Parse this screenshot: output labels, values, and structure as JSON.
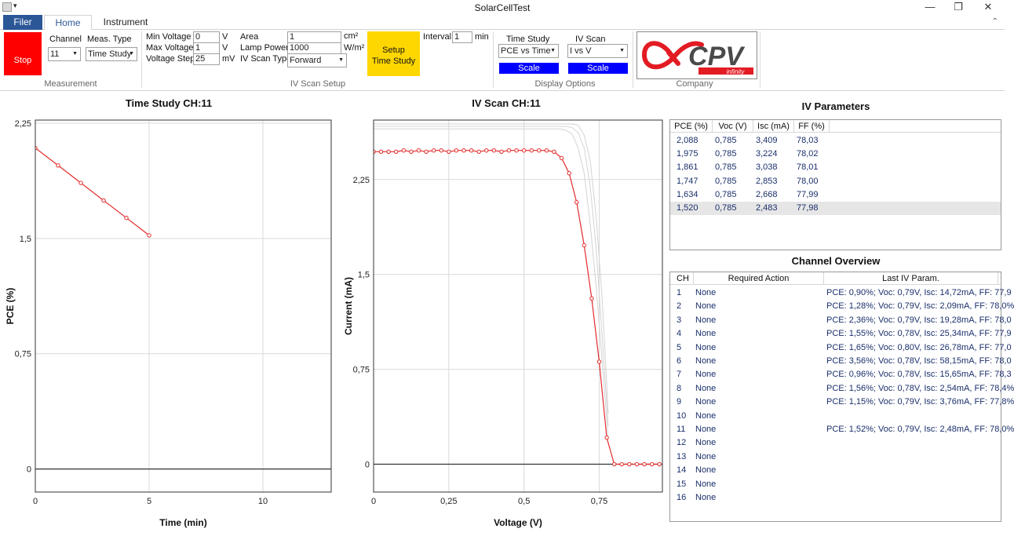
{
  "window": {
    "title": "SolarCellTest",
    "controls": [
      "minimize",
      "maximize",
      "close"
    ]
  },
  "ribbon_tabs": {
    "file": "Filer",
    "home": "Home",
    "instrument": "Instrument"
  },
  "measurement": {
    "stop_label": "Stop",
    "channel_label": "Channel",
    "channel_value": "11",
    "meas_type_label": "Meas. Type",
    "meas_type_value": "Time Study",
    "group_label": "Measurement"
  },
  "iv_setup": {
    "min_voltage_label": "Min Voltage",
    "min_voltage_value": "0",
    "min_voltage_unit": "V",
    "max_voltage_label": "Max Voltage",
    "max_voltage_value": "1",
    "max_voltage_unit": "V",
    "voltage_step_label": "Voltage Step",
    "voltage_step_value": "25",
    "voltage_step_unit": "mV",
    "area_label": "Area",
    "area_value": "1",
    "area_unit": "cm²",
    "lamp_power_label": "Lamp Power",
    "lamp_power_value": "1000",
    "lamp_power_unit": "W/m²",
    "scan_type_label": "IV Scan Type",
    "scan_type_value": "Forward",
    "setup_label_1": "Setup",
    "setup_label_2": "Time Study",
    "interval_label": "Interval",
    "interval_value": "1",
    "interval_unit": "min",
    "group_label": "IV Scan Setup",
    "setup_color": "#ffd700"
  },
  "display_options": {
    "time_study_label": "Time Study",
    "time_study_value": "PCE vs Time",
    "iv_scan_label": "IV Scan",
    "iv_scan_value": "I vs V",
    "scale_label": "Scale",
    "group_label": "Display Options"
  },
  "company": {
    "logo_text": "CPV",
    "logo_sub": "infinity",
    "group_label": "Company"
  },
  "time_chart_title": "Time Study CH:11",
  "iv_chart_title": "IV Scan CH:11",
  "chart_data": [
    {
      "type": "line",
      "title": "Time Study CH:11",
      "xlabel": "Time (min)",
      "ylabel": "PCE (%)",
      "xlim": [
        0,
        13
      ],
      "ylim": [
        -0.15,
        2.27
      ],
      "x_ticks": [
        0,
        5,
        10
      ],
      "x_tick_labels": [
        "0",
        "5",
        "10"
      ],
      "y_ticks": [
        0,
        0.75,
        1.5,
        2.25
      ],
      "y_tick_labels": [
        "0",
        "0,75",
        "1,5",
        "2,25"
      ],
      "grid": true,
      "series": [
        {
          "x": [
            0,
            1,
            2,
            3,
            4,
            5
          ],
          "y": [
            2.088,
            1.975,
            1.861,
            1.747,
            1.634,
            1.52
          ],
          "color": "#e32b2b"
        }
      ]
    },
    {
      "type": "line",
      "title": "IV Scan CH:11",
      "xlabel": "Voltage (V)",
      "ylabel": "Current (mA)",
      "xlim": [
        0,
        0.96
      ],
      "ylim": [
        -0.22,
        2.72
      ],
      "x_ticks": [
        0,
        0.25,
        0.5,
        0.75
      ],
      "x_tick_labels": [
        "0",
        "0,25",
        "0,5",
        "0,75"
      ],
      "y_ticks": [
        0,
        0.75,
        1.5,
        2.25
      ],
      "y_tick_labels": [
        "0",
        "0,75",
        "1,5",
        "2,25"
      ],
      "grid": true,
      "series": [
        {
          "color": "#e32b2b",
          "x": [
            0,
            0.025,
            0.05,
            0.075,
            0.1,
            0.125,
            0.15,
            0.175,
            0.2,
            0.225,
            0.25,
            0.275,
            0.3,
            0.325,
            0.35,
            0.375,
            0.4,
            0.425,
            0.45,
            0.475,
            0.5,
            0.525,
            0.55,
            0.575,
            0.6,
            0.625,
            0.65,
            0.675,
            0.7,
            0.725,
            0.75,
            0.775,
            0.8,
            0.825,
            0.85,
            0.875,
            0.9,
            0.925,
            0.95
          ],
          "y": [
            2.47,
            2.47,
            2.47,
            2.47,
            2.48,
            2.47,
            2.48,
            2.47,
            2.48,
            2.48,
            2.47,
            2.48,
            2.48,
            2.48,
            2.47,
            2.48,
            2.48,
            2.47,
            2.48,
            2.48,
            2.48,
            2.48,
            2.48,
            2.48,
            2.47,
            2.42,
            2.3,
            2.07,
            1.73,
            1.31,
            0.81,
            0.21,
            0,
            0,
            0,
            0,
            0,
            0,
            0
          ]
        },
        {
          "color": "#d3d3d3",
          "x": [
            0,
            0.6,
            0.62,
            0.64,
            0.66,
            0.68,
            0.7,
            0.72,
            0.74,
            0.76,
            0.78
          ],
          "y": [
            2.65,
            2.65,
            2.65,
            2.64,
            2.61,
            2.5,
            2.3,
            1.9,
            1.4,
            0.8,
            0.2
          ]
        },
        {
          "color": "#d3d3d3",
          "x": [
            0,
            0.62,
            0.64,
            0.66,
            0.68,
            0.7,
            0.72,
            0.74,
            0.76,
            0.78
          ],
          "y": [
            2.67,
            2.67,
            2.67,
            2.66,
            2.62,
            2.5,
            2.2,
            1.7,
            1.0,
            0.3
          ]
        },
        {
          "color": "#d3d3d3",
          "x": [
            0,
            0.64,
            0.66,
            0.68,
            0.7,
            0.72,
            0.74,
            0.76,
            0.78
          ],
          "y": [
            2.69,
            2.69,
            2.69,
            2.68,
            2.6,
            2.4,
            1.95,
            1.3,
            0.4
          ]
        }
      ]
    }
  ],
  "iv_parameters": {
    "title": "IV Parameters",
    "columns": [
      "PCE (%)",
      "Voc (V)",
      "Isc (mA)",
      "FF (%)"
    ],
    "rows": [
      [
        "2,088",
        "0,785",
        "3,409",
        "78,03"
      ],
      [
        "1,975",
        "0,785",
        "3,224",
        "78,02"
      ],
      [
        "1,861",
        "0,785",
        "3,038",
        "78,01"
      ],
      [
        "1,747",
        "0,785",
        "2,853",
        "78,00"
      ],
      [
        "1,634",
        "0,785",
        "2,668",
        "77,99"
      ],
      [
        "1,520",
        "0,785",
        "2,483",
        "77,98"
      ]
    ],
    "selected_row": 5
  },
  "channel_overview": {
    "title": "Channel Overview",
    "columns": [
      "CH",
      "Required Action",
      "Last IV Param."
    ],
    "rows": [
      [
        "1",
        "None",
        "PCE: 0,90%; Voc: 0,79V, Isc: 14,72mA, FF: 77,9"
      ],
      [
        "2",
        "None",
        "PCE: 1,28%; Voc: 0,79V, Isc: 2,09mA, FF: 78,0%"
      ],
      [
        "3",
        "None",
        "PCE: 2,36%; Voc: 0,79V, Isc: 19,28mA, FF: 78,0"
      ],
      [
        "4",
        "None",
        "PCE: 1,55%; Voc: 0,78V, Isc: 25,34mA, FF: 77,9"
      ],
      [
        "5",
        "None",
        "PCE: 1,65%; Voc: 0,80V, Isc: 26,78mA, FF: 77,0"
      ],
      [
        "6",
        "None",
        "PCE: 3,56%; Voc: 0,78V, Isc: 58,15mA, FF: 78,0"
      ],
      [
        "7",
        "None",
        "PCE: 0,96%; Voc: 0,78V, Isc: 15,65mA, FF: 78,3"
      ],
      [
        "8",
        "None",
        "PCE: 1,56%; Voc: 0,78V, Isc: 2,54mA, FF: 78,4%"
      ],
      [
        "9",
        "None",
        "PCE: 1,15%; Voc: 0,79V, Isc: 3,76mA, FF: 77,8%"
      ],
      [
        "10",
        "None",
        ""
      ],
      [
        "11",
        "None",
        "PCE: 1,52%; Voc: 0,79V, Isc: 2,48mA, FF: 78,0%"
      ],
      [
        "12",
        "None",
        ""
      ],
      [
        "13",
        "None",
        ""
      ],
      [
        "14",
        "None",
        ""
      ],
      [
        "15",
        "None",
        ""
      ],
      [
        "16",
        "None",
        ""
      ]
    ]
  }
}
